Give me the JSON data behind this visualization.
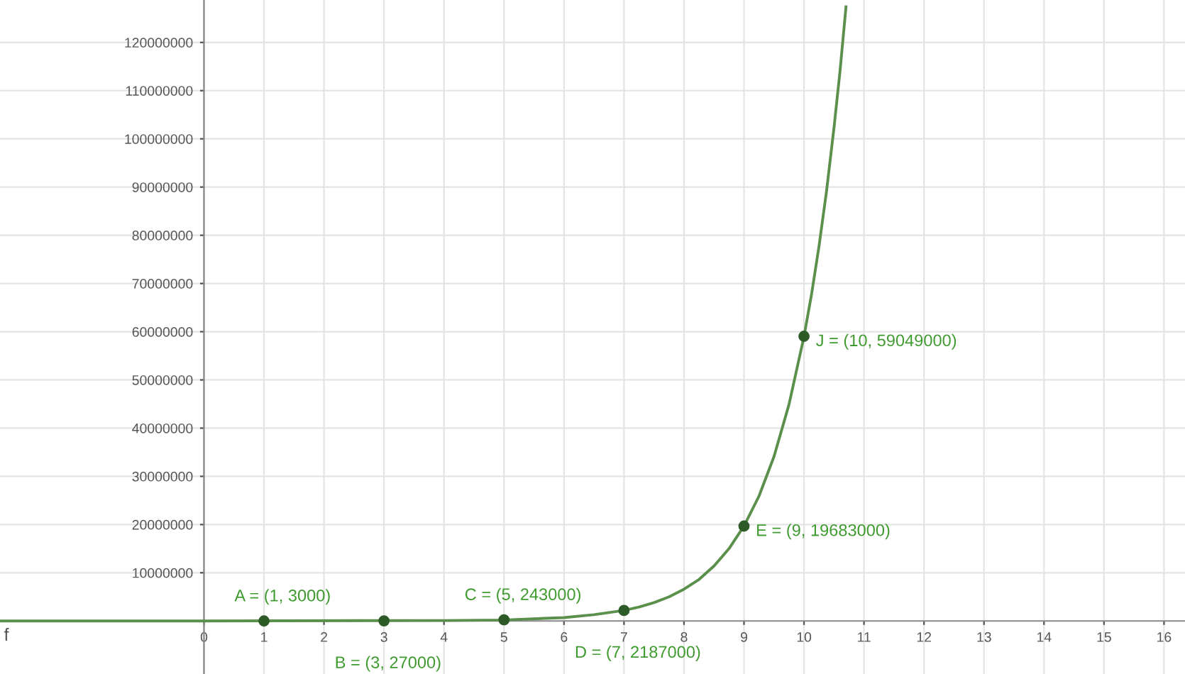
{
  "chart_data": {
    "type": "line",
    "xlim": [
      -3.4,
      16.35
    ],
    "ylim": [
      -11000000,
      128800000
    ],
    "xticks": [
      0,
      1,
      2,
      3,
      4,
      5,
      6,
      7,
      8,
      9,
      10,
      11,
      12,
      13,
      14,
      15,
      16
    ],
    "yticks": [
      10000000,
      20000000,
      30000000,
      40000000,
      50000000,
      60000000,
      70000000,
      80000000,
      90000000,
      100000000,
      110000000,
      120000000
    ],
    "grid": true,
    "series": [
      {
        "name": "f",
        "color": "#5b8f4c",
        "marker": "none",
        "line_style": "solid",
        "x": [
          -3.4,
          0,
          4,
          5,
          6,
          6.5,
          7,
          7.25,
          7.5,
          7.75,
          8,
          8.25,
          8.5,
          8.75,
          9,
          9.25,
          9.5,
          9.75,
          10,
          10.125,
          10.25,
          10.375,
          10.5,
          10.6,
          10.7
        ],
        "values": [
          0,
          0,
          100000,
          200000,
          700000,
          1300000,
          2200000,
          2900000,
          3800000,
          5000000,
          6600000,
          8600000,
          11400000,
          15000000,
          19700000,
          25900000,
          34100000,
          44900000,
          59000000,
          67700000,
          77700000,
          89100000,
          102300000,
          114000000,
          127400000
        ]
      },
      {
        "type": "scatter",
        "color": "#2d5a27",
        "marker": "circle",
        "x": [
          1,
          3,
          5,
          7,
          9,
          10
        ],
        "values": [
          3000,
          27000,
          243000,
          2187000,
          19683000,
          59049000
        ]
      }
    ],
    "annotations": [
      {
        "text": "A = (1, 3000)",
        "x": 1,
        "y": 3000
      },
      {
        "text": "B = (3, 27000)",
        "x": 3,
        "y": 27000
      },
      {
        "text": "C = (5, 243000)",
        "x": 5,
        "y": 243000
      },
      {
        "text": "D = (7, 2187000)",
        "x": 7,
        "y": 2187000
      },
      {
        "text": "E = (9, 19683000)",
        "x": 9,
        "y": 19683000
      },
      {
        "text": "J = (10, 59049000)",
        "x": 10,
        "y": 59049000
      }
    ]
  }
}
